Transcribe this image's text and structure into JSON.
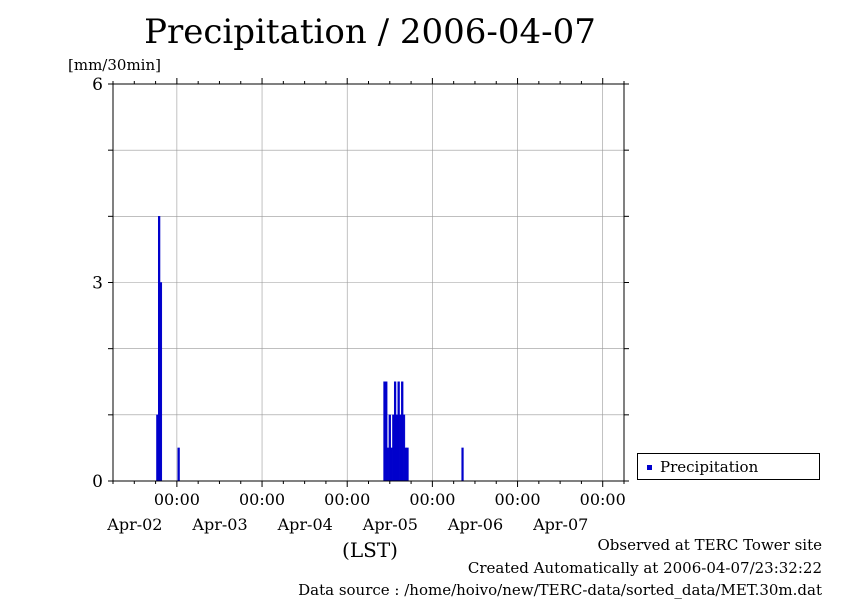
{
  "chart_data": {
    "type": "bar",
    "title": "Precipitation / 2006-04-07",
    "ylabel": "[mm/30min]",
    "xlabel": "(LST)",
    "ylim": [
      0,
      6
    ],
    "y_ticks": [
      "0",
      "3",
      "6"
    ],
    "x_range_hours": [
      -18,
      126
    ],
    "x_ticks": [
      {
        "hour": 0,
        "time": "00:00",
        "date": "Apr-02"
      },
      {
        "hour": 24,
        "time": "00:00",
        "date": "Apr-03"
      },
      {
        "hour": 48,
        "time": "00:00",
        "date": "Apr-04"
      },
      {
        "hour": 72,
        "time": "00:00",
        "date": "Apr-05"
      },
      {
        "hour": 96,
        "time": "00:00",
        "date": "Apr-06"
      },
      {
        "hour": 120,
        "time": "00:00",
        "date": "Apr-07"
      }
    ],
    "grid": true,
    "legend_position": "right",
    "series": [
      {
        "name": "Precipitation",
        "color": "#0000cc",
        "points": [
          {
            "x": "2006-04-01 18:30",
            "y": 1.0
          },
          {
            "x": "2006-04-01 19:00",
            "y": 4.0
          },
          {
            "x": "2006-04-01 19:30",
            "y": 3.0
          },
          {
            "x": "2006-04-02 00:30",
            "y": 0.5
          },
          {
            "x": "2006-04-04 10:30",
            "y": 1.5
          },
          {
            "x": "2006-04-04 11:00",
            "y": 1.5
          },
          {
            "x": "2006-04-04 11:30",
            "y": 0.5
          },
          {
            "x": "2006-04-04 12:00",
            "y": 1.0
          },
          {
            "x": "2006-04-04 12:30",
            "y": 0.5
          },
          {
            "x": "2006-04-04 13:00",
            "y": 1.0
          },
          {
            "x": "2006-04-04 13:30",
            "y": 1.5
          },
          {
            "x": "2006-04-04 14:00",
            "y": 1.0
          },
          {
            "x": "2006-04-04 14:30",
            "y": 1.5
          },
          {
            "x": "2006-04-04 15:00",
            "y": 1.0
          },
          {
            "x": "2006-04-04 15:30",
            "y": 1.5
          },
          {
            "x": "2006-04-04 16:00",
            "y": 1.0
          },
          {
            "x": "2006-04-04 16:30",
            "y": 0.5
          },
          {
            "x": "2006-04-04 17:00",
            "y": 0.5
          },
          {
            "x": "2006-04-05 08:30",
            "y": 0.5
          }
        ]
      }
    ]
  },
  "legend": {
    "label": "Precipitation"
  },
  "footer": {
    "line1": "Observed at TERC Tower site",
    "line2": "Created Automatically at 2006-04-07/23:32:22",
    "line3": "Data source : /home/hoivo/new/TERC-data/sorted_data/MET.30m.dat"
  }
}
